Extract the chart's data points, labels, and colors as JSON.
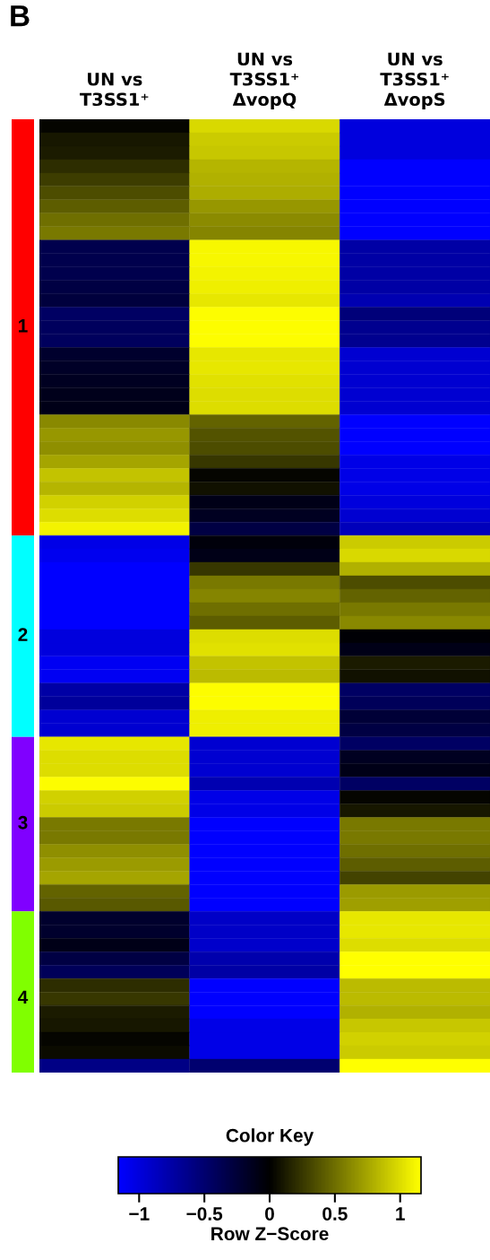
{
  "chart_data": {
    "type": "heatmap",
    "title": "B",
    "categories": [
      "UN vs\nT3SS1⁺",
      "UN vs\nT3SS1⁺\nΔvopQ",
      "UN vs\nT3SS1⁺\nΔvopS"
    ],
    "colors": [
      "#0000ff",
      "#000000",
      "#ffff00"
    ],
    "clim": [
      -1.16,
      1.16
    ],
    "cticks": [
      {
        "value": -1,
        "label": "−1"
      },
      {
        "value": -0.5,
        "label": "−0.5"
      },
      0,
      0.5,
      1
    ],
    "y_categories": [
      null,
      null,
      null,
      null,
      null,
      null,
      null,
      null,
      null,
      null,
      null,
      null,
      null,
      null,
      null,
      "1",
      null,
      null,
      null,
      null,
      null,
      null,
      null,
      null,
      null,
      null,
      null,
      null,
      null,
      null,
      null,
      null,
      null,
      null,
      null,
      null,
      null,
      null,
      "2",
      null,
      null,
      null,
      null,
      null,
      null,
      null,
      null,
      null,
      null,
      null,
      null,
      null,
      "3",
      null,
      null,
      null,
      null,
      null,
      null,
      null,
      null,
      null,
      null,
      null,
      null,
      "4",
      null,
      null,
      null,
      null,
      null
    ],
    "legend_title": "Color Key",
    "clabel": "Row Z−Score",
    "cells": [
      [
        0.02,
        0.98,
        -1.0
      ],
      [
        0.1,
        0.92,
        -1.0
      ],
      [
        0.12,
        0.9,
        -1.0
      ],
      [
        0.2,
        0.82,
        -1.16
      ],
      [
        0.28,
        0.8,
        -1.16
      ],
      [
        0.35,
        0.78,
        -1.16
      ],
      [
        0.42,
        0.68,
        -1.16
      ],
      [
        0.5,
        0.63,
        -1.16
      ],
      [
        0.55,
        0.6,
        -1.16
      ],
      [
        -0.35,
        1.12,
        -0.75
      ],
      [
        -0.35,
        1.12,
        -0.75
      ],
      [
        -0.35,
        1.1,
        -0.75
      ],
      [
        -0.3,
        1.08,
        -0.75
      ],
      [
        -0.28,
        1.05,
        -0.8
      ],
      [
        -0.45,
        1.15,
        -0.55
      ],
      [
        -0.42,
        1.15,
        -0.65
      ],
      [
        -0.42,
        1.15,
        -0.65
      ],
      [
        -0.2,
        1.05,
        -0.95
      ],
      [
        -0.18,
        1.05,
        -0.95
      ],
      [
        -0.15,
        1.02,
        -0.95
      ],
      [
        -0.12,
        1.0,
        -0.95
      ],
      [
        -0.1,
        1.0,
        -0.95
      ],
      [
        0.62,
        0.45,
        -1.16
      ],
      [
        0.68,
        0.38,
        -1.16
      ],
      [
        0.65,
        0.35,
        -1.16
      ],
      [
        0.75,
        0.25,
        -1.05
      ],
      [
        0.88,
        0.02,
        -1.05
      ],
      [
        0.82,
        0.08,
        -1.05
      ],
      [
        0.95,
        -0.1,
        -1.0
      ],
      [
        1.0,
        -0.15,
        -0.95
      ],
      [
        1.1,
        -0.3,
        -0.85
      ],
      [
        -1.05,
        -0.05,
        0.92
      ],
      [
        -1.08,
        -0.1,
        0.98
      ],
      [
        -1.16,
        0.25,
        0.8
      ],
      [
        -1.16,
        0.55,
        0.35
      ],
      [
        -1.16,
        0.6,
        0.45
      ],
      [
        -1.16,
        0.5,
        0.55
      ],
      [
        -1.16,
        0.42,
        0.62
      ],
      [
        -1.0,
        1.0,
        -0.02
      ],
      [
        -1.0,
        1.02,
        -0.1
      ],
      [
        -1.1,
        0.88,
        0.12
      ],
      [
        -1.1,
        0.85,
        0.08
      ],
      [
        -0.75,
        1.15,
        -0.45
      ],
      [
        -0.7,
        1.15,
        -0.4
      ],
      [
        -0.95,
        1.08,
        -0.25
      ],
      [
        -0.95,
        1.08,
        -0.3
      ],
      [
        1.05,
        -0.95,
        -0.45
      ],
      [
        1.0,
        -0.95,
        -0.15
      ],
      [
        1.0,
        -0.95,
        -0.1
      ],
      [
        1.15,
        -0.8,
        -0.45
      ],
      [
        0.95,
        -1.05,
        0.02
      ],
      [
        0.92,
        -1.05,
        0.1
      ],
      [
        0.55,
        -1.16,
        0.55
      ],
      [
        0.55,
        -1.16,
        0.55
      ],
      [
        0.65,
        -1.16,
        0.5
      ],
      [
        0.7,
        -1.16,
        0.42
      ],
      [
        0.75,
        -1.16,
        0.3
      ],
      [
        0.45,
        -1.16,
        0.7
      ],
      [
        0.4,
        -1.16,
        0.72
      ],
      [
        -0.2,
        -0.9,
        1.05
      ],
      [
        -0.2,
        -0.9,
        1.05
      ],
      [
        -0.1,
        -0.92,
        1.0
      ],
      [
        -0.3,
        -0.78,
        1.16
      ],
      [
        -0.4,
        -0.75,
        1.16
      ],
      [
        0.2,
        -1.16,
        0.85
      ],
      [
        0.25,
        -1.16,
        0.85
      ],
      [
        0.12,
        -1.16,
        0.8
      ],
      [
        0.1,
        -1.05,
        0.9
      ],
      [
        0.02,
        -1.05,
        0.95
      ],
      [
        0.05,
        -1.05,
        0.92
      ],
      [
        -0.6,
        -0.5,
        1.16
      ]
    ]
  }
}
